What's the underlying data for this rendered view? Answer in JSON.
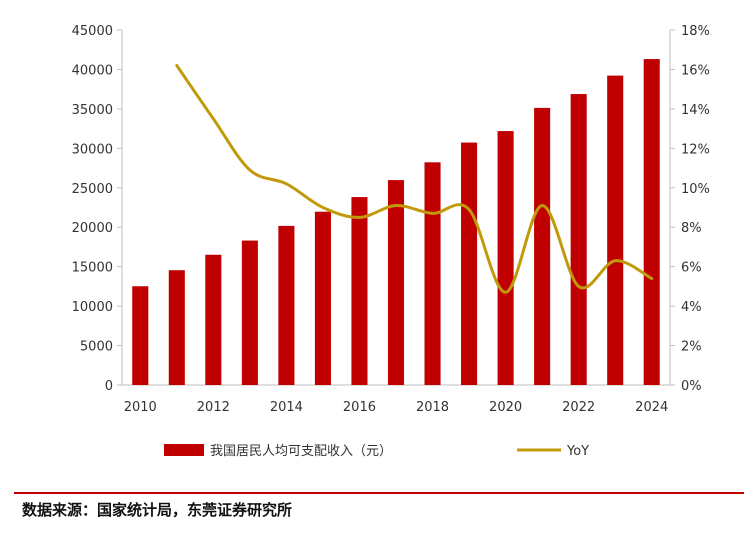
{
  "chart_data": {
    "type": "bar+line",
    "categories": [
      2010,
      2011,
      2012,
      2013,
      2014,
      2015,
      2016,
      2017,
      2018,
      2019,
      2020,
      2021,
      2022,
      2023,
      2024
    ],
    "x_ticks": [
      "2010",
      "2012",
      "2014",
      "2016",
      "2018",
      "2020",
      "2022",
      "2024"
    ],
    "series": [
      {
        "name": "我国居民人均可支配收入（元）",
        "type": "bar",
        "axis": "left",
        "color": "#c00000",
        "values": [
          12520,
          14551,
          16510,
          18311,
          20167,
          21966,
          23821,
          25974,
          28228,
          30733,
          32189,
          35128,
          36883,
          39218,
          41314
        ]
      },
      {
        "name": "YoY",
        "type": "line",
        "axis": "right",
        "color": "#c09a0a",
        "values": [
          null,
          16.2,
          13.5,
          10.9,
          10.2,
          9.0,
          8.5,
          9.1,
          8.7,
          8.9,
          4.7,
          9.1,
          5.0,
          6.3,
          5.4
        ]
      }
    ],
    "y_left": {
      "min": 0,
      "max": 45000,
      "step": 5000,
      "ticks": [
        "0",
        "5000",
        "10000",
        "15000",
        "20000",
        "25000",
        "30000",
        "35000",
        "40000",
        "45000"
      ]
    },
    "y_right": {
      "min": 0,
      "max": 18,
      "step": 2,
      "ticks": [
        "0%",
        "2%",
        "4%",
        "6%",
        "8%",
        "10%",
        "12%",
        "14%",
        "16%",
        "18%"
      ]
    },
    "legend_position": "bottom",
    "grid": false
  },
  "legend": {
    "bar_label": "我国居民人均可支配收入（元）",
    "line_label": "YoY"
  },
  "source": "数据来源：国家统计局，东莞证券研究所",
  "colors": {
    "bar": "#c00000",
    "line": "#c09a0a",
    "axis": "#bfbfbf",
    "rule": "#c00000"
  }
}
